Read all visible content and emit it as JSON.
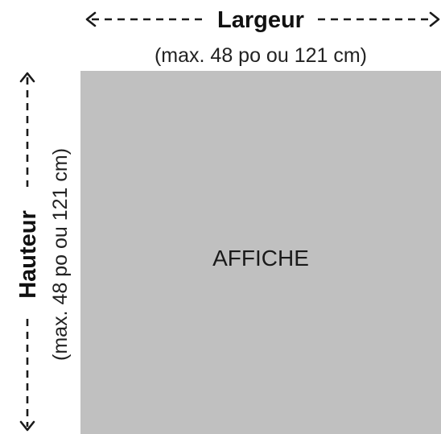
{
  "width": {
    "label": "Largeur",
    "limit": "(max. 48 po ou 121 cm)"
  },
  "height": {
    "label": "Hauteur",
    "limit": "(max. 48 po ou 121 cm)"
  },
  "poster": {
    "label": "AFFICHE",
    "color": "#c0c0c0"
  }
}
